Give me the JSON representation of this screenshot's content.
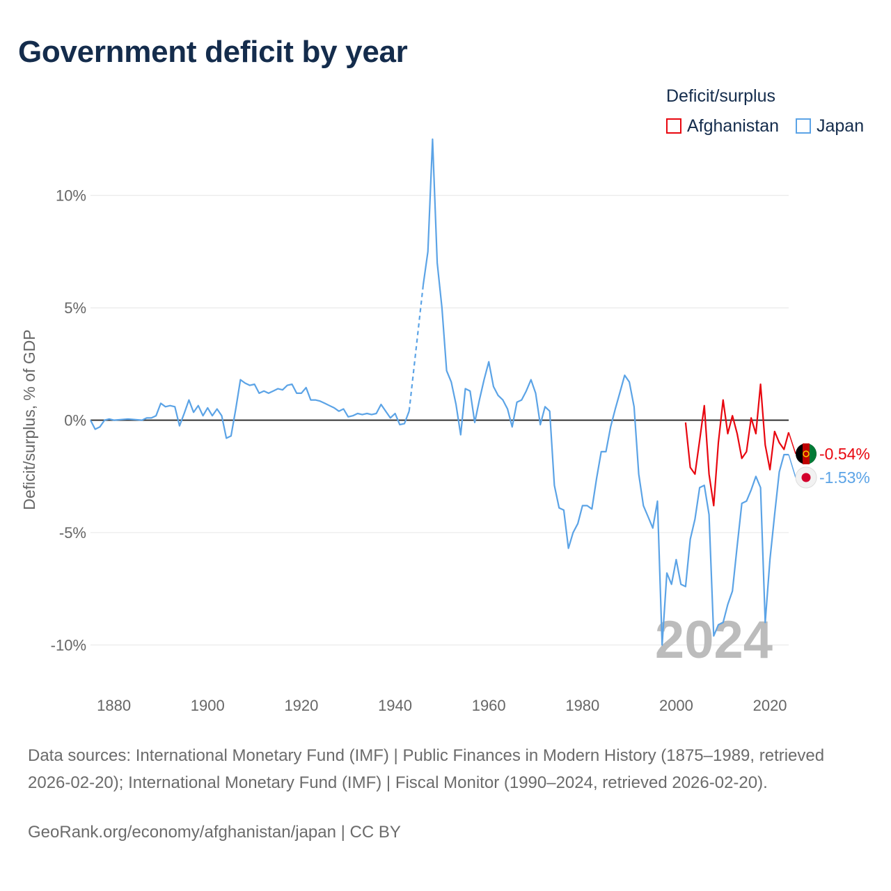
{
  "title": "Government deficit by year",
  "legend": {
    "title": "Deficit/surplus",
    "items": [
      {
        "name": "Afghanistan",
        "color": "#e8060f"
      },
      {
        "name": "Japan",
        "color": "#5ba3e6"
      }
    ]
  },
  "footer": {
    "sources": "Data sources: International Monetary Fund (IMF) | Public Finances in Modern History (1875–1989, retrieved 2026-02-20); International Monetary Fund (IMF) | Fiscal Monitor (1990–2024, retrieved 2026-02-20).",
    "credit": "GeoRank.org/economy/afghanistan/japan | CC BY"
  },
  "chart_data": {
    "type": "line",
    "title": "Government deficit by year",
    "xlabel": "",
    "ylabel": "Deficit/surplus, % of GDP",
    "xlim": [
      1875,
      2024
    ],
    "ylim": [
      -11.5,
      12.5
    ],
    "x_ticks": [
      1880,
      1900,
      1920,
      1940,
      1960,
      1980,
      2000,
      2020
    ],
    "y_ticks": [
      10,
      5,
      0,
      -5,
      -10
    ],
    "y_tick_labels": [
      "10%",
      "5%",
      "0%",
      "-5%",
      "-10%"
    ],
    "grid": true,
    "watermark_year": "2024",
    "series": [
      {
        "name": "Japan",
        "color": "#5ba3e6",
        "end_label": "-1.53%",
        "flag": "japan-flag",
        "gap": [
          1943,
          1946
        ],
        "points": [
          [
            1875,
            0.0
          ],
          [
            1876,
            -0.4
          ],
          [
            1877,
            -0.3
          ],
          [
            1878,
            0.0
          ],
          [
            1879,
            0.05
          ],
          [
            1880,
            0.0
          ],
          [
            1883,
            0.05
          ],
          [
            1886,
            0.0
          ],
          [
            1887,
            0.1
          ],
          [
            1888,
            0.1
          ],
          [
            1889,
            0.2
          ],
          [
            1890,
            0.75
          ],
          [
            1891,
            0.6
          ],
          [
            1892,
            0.65
          ],
          [
            1893,
            0.6
          ],
          [
            1894,
            -0.25
          ],
          [
            1895,
            0.3
          ],
          [
            1896,
            0.9
          ],
          [
            1897,
            0.35
          ],
          [
            1898,
            0.65
          ],
          [
            1899,
            0.2
          ],
          [
            1900,
            0.55
          ],
          [
            1901,
            0.2
          ],
          [
            1902,
            0.5
          ],
          [
            1903,
            0.2
          ],
          [
            1904,
            -0.8
          ],
          [
            1905,
            -0.7
          ],
          [
            1906,
            0.5
          ],
          [
            1907,
            1.8
          ],
          [
            1908,
            1.65
          ],
          [
            1909,
            1.55
          ],
          [
            1910,
            1.6
          ],
          [
            1911,
            1.2
          ],
          [
            1912,
            1.3
          ],
          [
            1913,
            1.2
          ],
          [
            1914,
            1.3
          ],
          [
            1915,
            1.4
          ],
          [
            1916,
            1.35
          ],
          [
            1917,
            1.55
          ],
          [
            1918,
            1.6
          ],
          [
            1919,
            1.2
          ],
          [
            1920,
            1.2
          ],
          [
            1921,
            1.45
          ],
          [
            1922,
            0.9
          ],
          [
            1923,
            0.9
          ],
          [
            1924,
            0.85
          ],
          [
            1925,
            0.75
          ],
          [
            1926,
            0.65
          ],
          [
            1927,
            0.55
          ],
          [
            1928,
            0.4
          ],
          [
            1929,
            0.5
          ],
          [
            1930,
            0.15
          ],
          [
            1931,
            0.2
          ],
          [
            1932,
            0.3
          ],
          [
            1933,
            0.25
          ],
          [
            1934,
            0.3
          ],
          [
            1935,
            0.25
          ],
          [
            1936,
            0.3
          ],
          [
            1937,
            0.7
          ],
          [
            1938,
            0.4
          ],
          [
            1939,
            0.1
          ],
          [
            1940,
            0.3
          ],
          [
            1941,
            -0.2
          ],
          [
            1942,
            -0.15
          ],
          [
            1943,
            0.4
          ],
          [
            1946,
            6.0
          ],
          [
            1947,
            7.5
          ],
          [
            1948,
            12.5
          ],
          [
            1949,
            7.0
          ],
          [
            1950,
            5.0
          ],
          [
            1951,
            2.2
          ],
          [
            1952,
            1.7
          ],
          [
            1953,
            0.7
          ],
          [
            1954,
            -0.65
          ],
          [
            1955,
            1.4
          ],
          [
            1956,
            1.3
          ],
          [
            1957,
            -0.1
          ],
          [
            1958,
            0.9
          ],
          [
            1959,
            1.8
          ],
          [
            1960,
            2.6
          ],
          [
            1961,
            1.5
          ],
          [
            1962,
            1.1
          ],
          [
            1963,
            0.9
          ],
          [
            1964,
            0.5
          ],
          [
            1965,
            -0.3
          ],
          [
            1966,
            0.8
          ],
          [
            1967,
            0.9
          ],
          [
            1968,
            1.3
          ],
          [
            1969,
            1.8
          ],
          [
            1970,
            1.2
          ],
          [
            1971,
            -0.2
          ],
          [
            1972,
            0.6
          ],
          [
            1973,
            0.4
          ],
          [
            1974,
            -2.9
          ],
          [
            1975,
            -3.9
          ],
          [
            1976,
            -4.0
          ],
          [
            1977,
            -5.7
          ],
          [
            1978,
            -5.0
          ],
          [
            1979,
            -4.6
          ],
          [
            1980,
            -3.8
          ],
          [
            1981,
            -3.8
          ],
          [
            1982,
            -3.95
          ],
          [
            1983,
            -2.6
          ],
          [
            1984,
            -1.4
          ],
          [
            1985,
            -1.4
          ],
          [
            1986,
            -0.3
          ],
          [
            1987,
            0.5
          ],
          [
            1988,
            1.25
          ],
          [
            1989,
            2.0
          ],
          [
            1990,
            1.7
          ],
          [
            1991,
            0.6
          ],
          [
            1992,
            -2.4
          ],
          [
            1993,
            -3.8
          ],
          [
            1994,
            -4.3
          ],
          [
            1995,
            -4.8
          ],
          [
            1996,
            -3.6
          ],
          [
            1997,
            -10.0
          ],
          [
            1998,
            -6.8
          ],
          [
            1999,
            -7.3
          ],
          [
            2000,
            -6.2
          ],
          [
            2001,
            -7.3
          ],
          [
            2002,
            -7.4
          ],
          [
            2003,
            -5.3
          ],
          [
            2004,
            -4.4
          ],
          [
            2005,
            -3.0
          ],
          [
            2006,
            -2.9
          ],
          [
            2007,
            -4.2
          ],
          [
            2008,
            -9.6
          ],
          [
            2009,
            -9.1
          ],
          [
            2010,
            -9.0
          ],
          [
            2011,
            -8.2
          ],
          [
            2012,
            -7.6
          ],
          [
            2013,
            -5.6
          ],
          [
            2014,
            -3.7
          ],
          [
            2015,
            -3.6
          ],
          [
            2016,
            -3.1
          ],
          [
            2017,
            -2.5
          ],
          [
            2018,
            -3.0
          ],
          [
            2019,
            -9.0
          ],
          [
            2020,
            -6.2
          ],
          [
            2021,
            -4.2
          ],
          [
            2022,
            -2.3
          ],
          [
            2023,
            -1.53
          ],
          [
            2024,
            -1.53
          ]
        ]
      },
      {
        "name": "Afghanistan",
        "color": "#e8060f",
        "end_label": "-0.54%",
        "flag": "afghanistan-flag",
        "points": [
          [
            2002,
            -0.1
          ],
          [
            2003,
            -2.1
          ],
          [
            2004,
            -2.4
          ],
          [
            2005,
            -0.9
          ],
          [
            2006,
            0.65
          ],
          [
            2007,
            -2.4
          ],
          [
            2008,
            -3.8
          ],
          [
            2009,
            -1.0
          ],
          [
            2010,
            0.9
          ],
          [
            2011,
            -0.6
          ],
          [
            2012,
            0.2
          ],
          [
            2013,
            -0.6
          ],
          [
            2014,
            -1.7
          ],
          [
            2015,
            -1.4
          ],
          [
            2016,
            0.1
          ],
          [
            2017,
            -0.6
          ],
          [
            2018,
            1.6
          ],
          [
            2019,
            -1.1
          ],
          [
            2020,
            -2.2
          ],
          [
            2021,
            -0.5
          ],
          [
            2022,
            -1.0
          ],
          [
            2023,
            -1.3
          ],
          [
            2024,
            -0.54
          ]
        ]
      }
    ]
  }
}
